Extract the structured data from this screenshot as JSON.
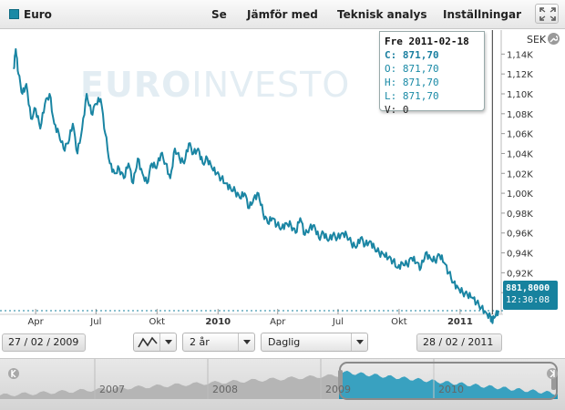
{
  "header": {
    "title": "Euro",
    "menu": [
      "Se",
      "Jämför med",
      "Teknisk analys",
      "Inställningar"
    ]
  },
  "watermark": {
    "bold": "EURO",
    "thin": "INVESTO"
  },
  "currency": "SEK",
  "tooltip": {
    "date": "Fre 2011-02-18",
    "close": "C: 871,70",
    "open": "O: 871,70",
    "high": "H: 871,70",
    "low": "L: 871,70",
    "volume": "V: 0"
  },
  "price_marker": {
    "value": "881,8000",
    "time": "12:30:08"
  },
  "controls": {
    "start_date": "27 / 02 / 2009",
    "end_date": "28 / 02 / 2011",
    "period": "2 år",
    "interval": "Daglig"
  },
  "navigator": {
    "years": [
      "2007",
      "2008",
      "2009",
      "2010"
    ]
  },
  "colors": {
    "line": "#1a85a3",
    "accent": "#17829e",
    "grid": "#e4e4e4"
  },
  "chart_data": {
    "type": "line",
    "title": "",
    "xlabel": "",
    "ylabel": "SEK",
    "x_tick_labels": [
      "Apr",
      "Jul",
      "Okt",
      "2010",
      "Apr",
      "Jul",
      "Okt",
      "2011"
    ],
    "y_tick_labels": [
      "0,90K",
      "0,92K",
      "0,94K",
      "0,96K",
      "0,98K",
      "1,00K",
      "1,02K",
      "1,04K",
      "1,06K",
      "1,08K",
      "1,10K",
      "1,12K",
      "1,14K"
    ],
    "ylim": [
      0.88,
      1.155
    ],
    "grid": false,
    "series": [
      {
        "x": [
          "2009-02-27",
          "2009-03-02",
          "2009-03-06",
          "2009-03-12",
          "2009-03-18",
          "2009-03-25",
          "2009-04-01",
          "2009-04-08",
          "2009-04-15",
          "2009-04-22",
          "2009-04-29",
          "2009-05-06",
          "2009-05-13",
          "2009-05-20",
          "2009-05-27",
          "2009-06-03",
          "2009-06-10",
          "2009-06-17",
          "2009-06-24",
          "2009-07-01",
          "2009-07-08",
          "2009-07-15",
          "2009-07-22",
          "2009-07-29",
          "2009-08-05",
          "2009-08-12",
          "2009-08-19",
          "2009-08-26",
          "2009-09-02",
          "2009-09-09",
          "2009-09-16",
          "2009-09-23",
          "2009-09-30",
          "2009-10-07",
          "2009-10-14",
          "2009-10-21",
          "2009-10-28",
          "2009-11-04",
          "2009-11-11",
          "2009-11-18",
          "2009-11-25",
          "2009-12-02",
          "2009-12-09",
          "2009-12-16",
          "2009-12-23",
          "2009-12-30",
          "2010-01-06",
          "2010-01-13",
          "2010-01-20",
          "2010-01-27",
          "2010-02-03",
          "2010-02-10",
          "2010-02-17",
          "2010-02-24",
          "2010-03-03",
          "2010-03-10",
          "2010-03-17",
          "2010-03-24",
          "2010-03-31",
          "2010-04-07",
          "2010-04-14",
          "2010-04-21",
          "2010-04-28",
          "2010-05-05",
          "2010-05-12",
          "2010-05-19",
          "2010-05-26",
          "2010-06-02",
          "2010-06-09",
          "2010-06-16",
          "2010-06-23",
          "2010-06-30",
          "2010-07-07",
          "2010-07-14",
          "2010-07-21",
          "2010-07-28",
          "2010-08-04",
          "2010-08-11",
          "2010-08-18",
          "2010-08-25",
          "2010-09-01",
          "2010-09-08",
          "2010-09-15",
          "2010-09-22",
          "2010-09-29",
          "2010-10-06",
          "2010-10-13",
          "2010-10-20",
          "2010-10-27",
          "2010-11-03",
          "2010-11-10",
          "2010-11-17",
          "2010-11-24",
          "2010-12-01",
          "2010-12-08",
          "2010-12-15",
          "2010-12-22",
          "2010-12-29",
          "2011-01-05",
          "2011-01-12",
          "2011-01-19",
          "2011-01-26",
          "2011-02-02",
          "2011-02-09",
          "2011-02-16",
          "2011-02-18",
          "2011-02-22",
          "2011-02-28"
        ],
        "values": [
          1.125,
          1.145,
          1.12,
          1.1,
          1.11,
          1.075,
          1.085,
          1.065,
          1.09,
          1.1,
          1.07,
          1.06,
          1.045,
          1.05,
          1.07,
          1.04,
          1.065,
          1.1,
          1.08,
          1.09,
          1.095,
          1.06,
          1.03,
          1.02,
          1.025,
          1.015,
          1.03,
          1.01,
          1.035,
          1.02,
          1.01,
          1.03,
          1.025,
          1.04,
          1.03,
          1.015,
          1.045,
          1.035,
          1.03,
          1.05,
          1.04,
          1.045,
          1.03,
          1.035,
          1.025,
          1.02,
          1.015,
          1.01,
          1.005,
          1.002,
          0.995,
          1.0,
          0.985,
          0.995,
          1.0,
          0.98,
          0.97,
          0.975,
          0.968,
          0.965,
          0.97,
          0.968,
          0.96,
          0.975,
          0.958,
          0.965,
          0.968,
          0.955,
          0.96,
          0.952,
          0.958,
          0.955,
          0.96,
          0.958,
          0.95,
          0.945,
          0.955,
          0.948,
          0.952,
          0.945,
          0.94,
          0.938,
          0.935,
          0.932,
          0.925,
          0.93,
          0.928,
          0.935,
          0.93,
          0.925,
          0.94,
          0.935,
          0.932,
          0.938,
          0.93,
          0.92,
          0.91,
          0.905,
          0.9,
          0.898,
          0.895,
          0.89,
          0.885,
          0.88,
          0.875,
          0.8717,
          0.875,
          0.8818
        ]
      }
    ]
  }
}
